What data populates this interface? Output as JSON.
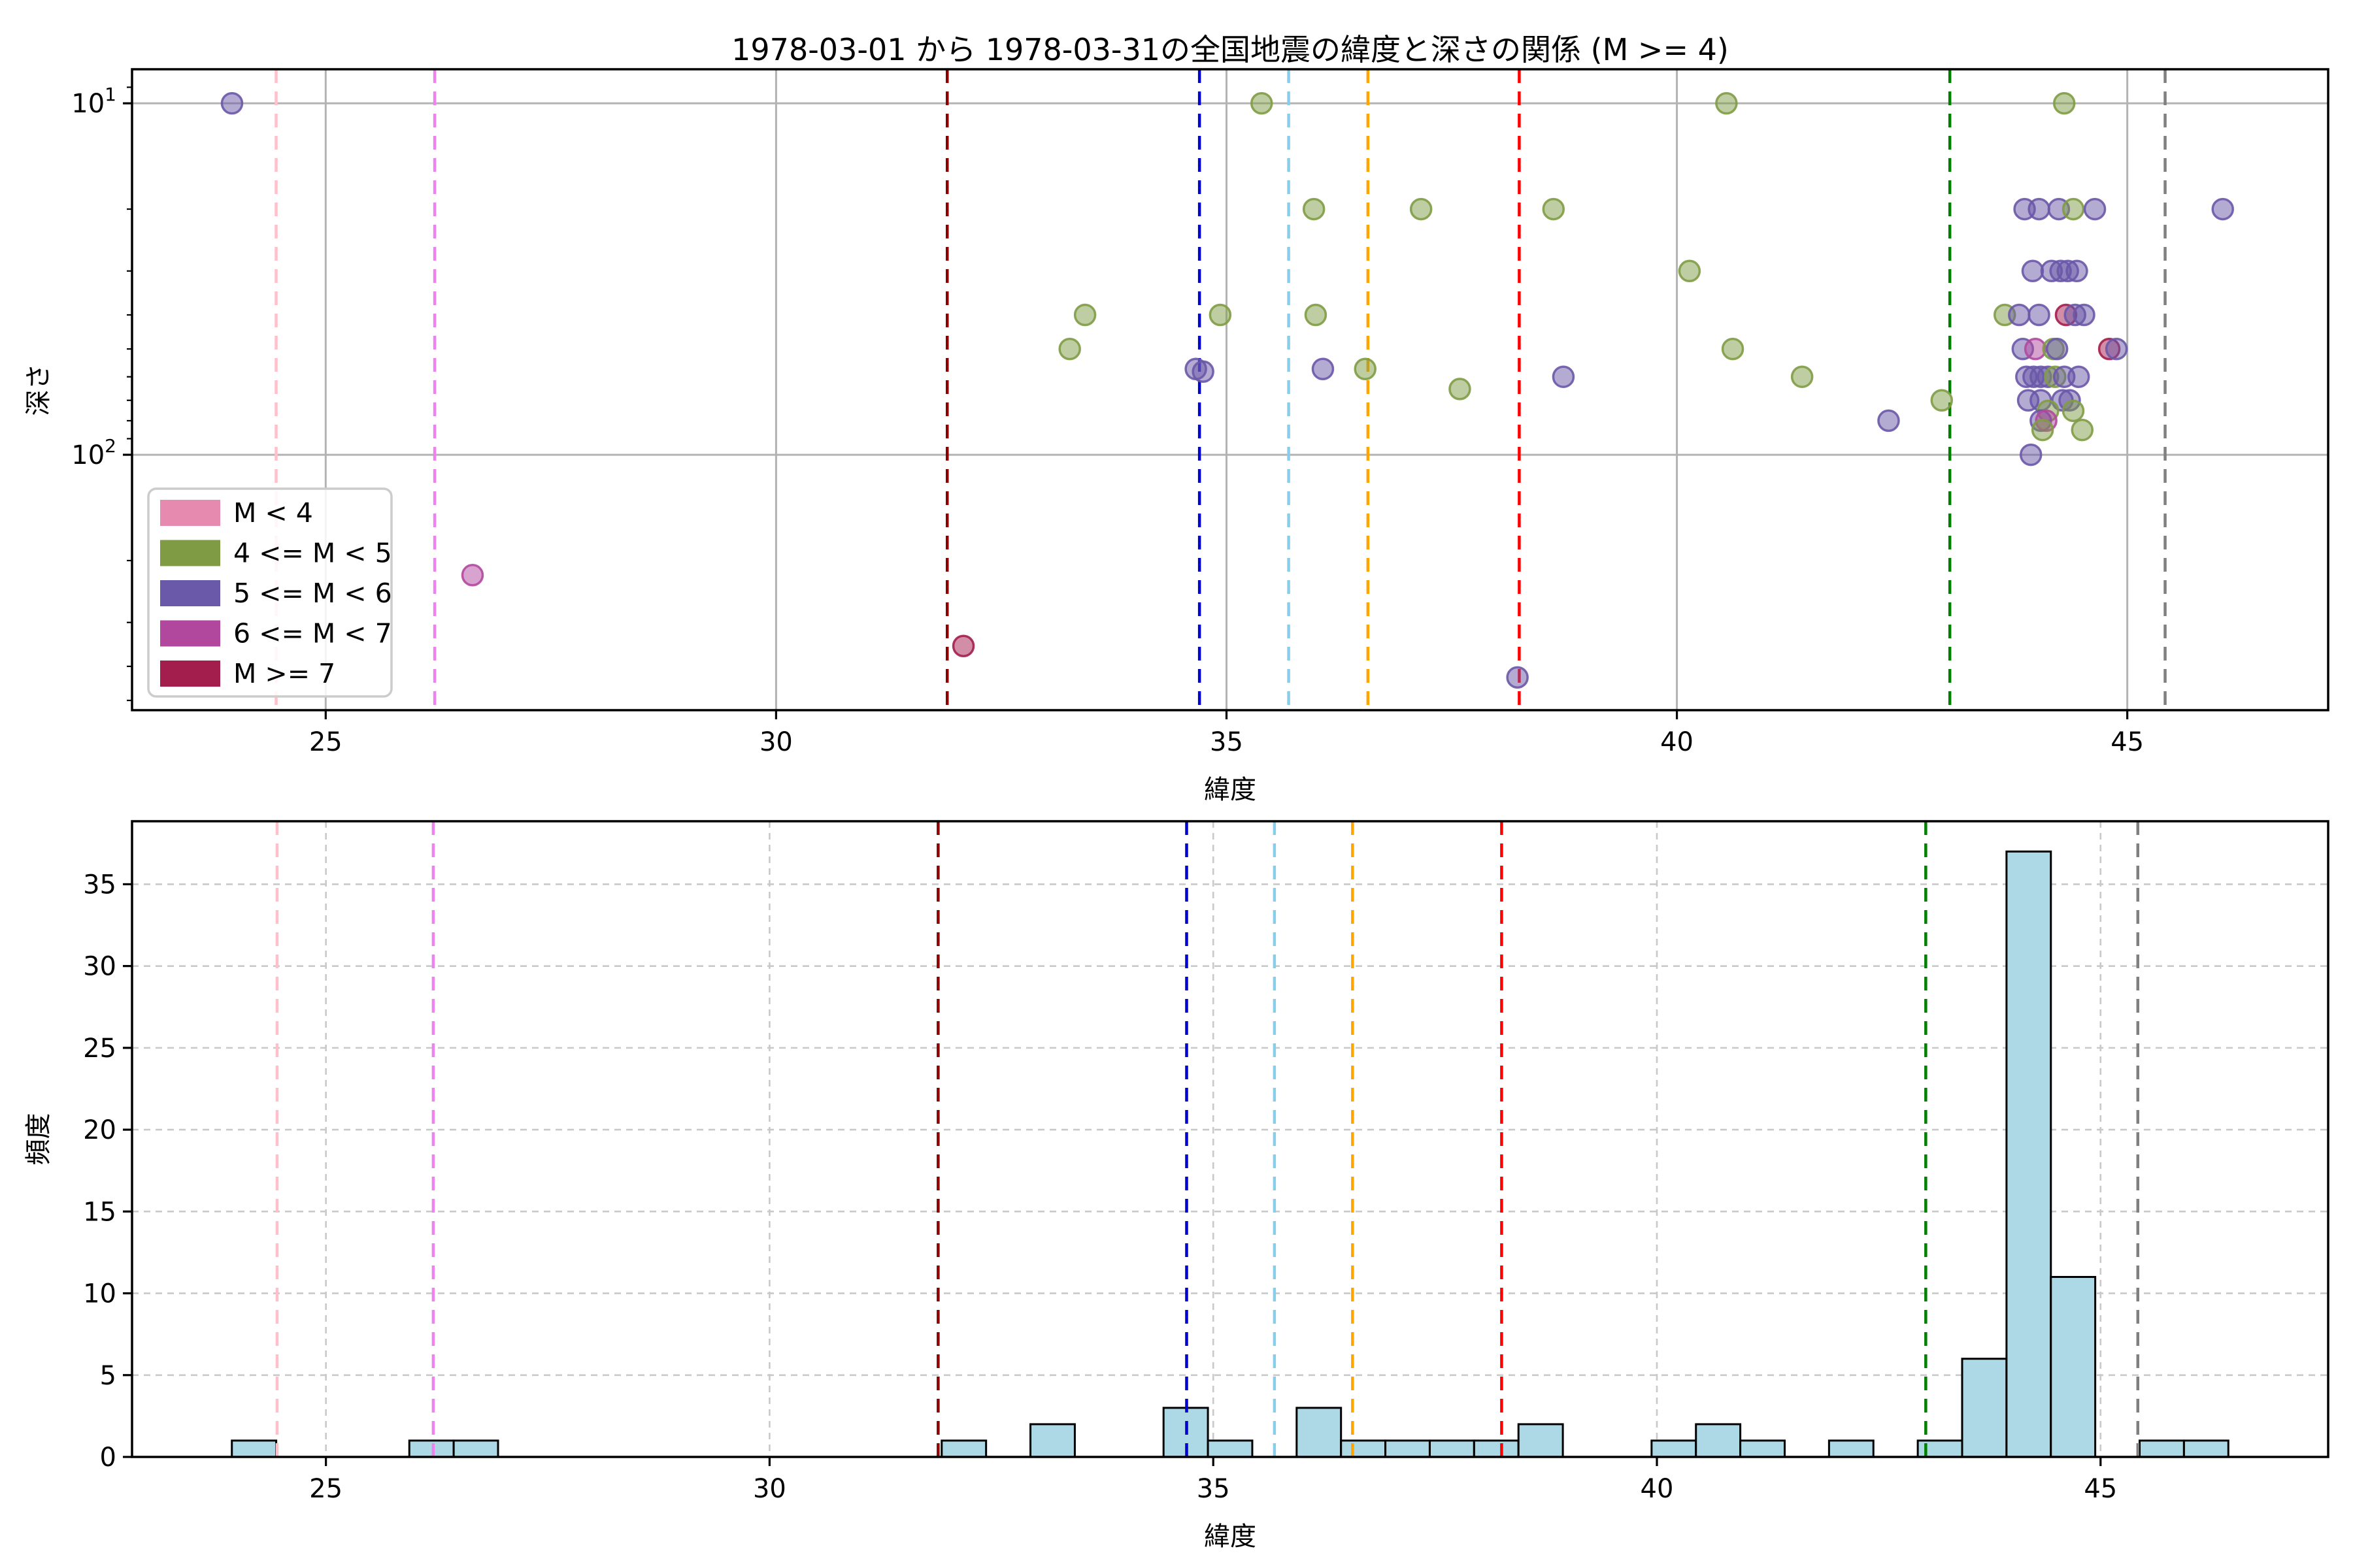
{
  "title": "1978-03-01 から 1978-03-31の全国地震の緯度と深さの関係 (M >= 4)",
  "legend": {
    "items": [
      {
        "label": "M < 4",
        "color": "#e78ab0"
      },
      {
        "label": "4 <= M < 5",
        "color": "#7f9c45"
      },
      {
        "label": "5 <= M < 6",
        "color": "#6a58a8"
      },
      {
        "label": "6 <= M < 7",
        "color": "#b2489e"
      },
      {
        "label": "M >= 7",
        "color": "#a31e4d"
      }
    ]
  },
  "chart_data": [
    {
      "type": "scatter",
      "title": "1978-03-01 から 1978-03-31の全国地震の緯度と深さの関係 (M >= 4)",
      "xlabel": "緯度",
      "ylabel": "深さ",
      "xlim": [
        22.85,
        47.23
      ],
      "ylim_depth_log_inverted": [
        8.0,
        533
      ],
      "xticks": [
        25,
        30,
        35,
        40,
        45
      ],
      "ytick_labels": [
        "10¹",
        "10²"
      ],
      "ytick_values": [
        10,
        100
      ],
      "yminor_ticks": [
        9,
        20,
        30,
        40,
        50,
        60,
        70,
        80,
        90,
        200,
        300,
        400,
        500
      ],
      "grid": "solid gray at major ticks",
      "legend_position": "lower left",
      "category_colors": [
        "#e78ab0",
        "#7f9c45",
        "#6a58a8",
        "#b2489e",
        "#a31e4d"
      ],
      "points_lat_depth_cat": [
        [
          23.96,
          10,
          2
        ],
        [
          26.63,
          220,
          3
        ],
        [
          32.08,
          350,
          4
        ],
        [
          33.26,
          50,
          1
        ],
        [
          33.43,
          40,
          1
        ],
        [
          34.66,
          57,
          2
        ],
        [
          34.74,
          58,
          2
        ],
        [
          34.93,
          40,
          1
        ],
        [
          35.39,
          10,
          1
        ],
        [
          35.97,
          20,
          1
        ],
        [
          35.99,
          40,
          1
        ],
        [
          36.07,
          57,
          2
        ],
        [
          36.54,
          57,
          1
        ],
        [
          37.16,
          20,
          1
        ],
        [
          37.59,
          65,
          1
        ],
        [
          38.23,
          430,
          2
        ],
        [
          38.63,
          20,
          1
        ],
        [
          38.74,
          60,
          2
        ],
        [
          40.14,
          30,
          1
        ],
        [
          40.55,
          10,
          1
        ],
        [
          40.62,
          50,
          1
        ],
        [
          41.39,
          60,
          1
        ],
        [
          42.35,
          80,
          2
        ],
        [
          42.94,
          70,
          1
        ],
        [
          46.06,
          20,
          2
        ],
        [
          44.3,
          10,
          1
        ],
        [
          43.86,
          20,
          2
        ],
        [
          44.02,
          20,
          2
        ],
        [
          44.24,
          20,
          2
        ],
        [
          44.4,
          20,
          1
        ],
        [
          44.64,
          20,
          2
        ],
        [
          43.95,
          30,
          2
        ],
        [
          44.16,
          30,
          2
        ],
        [
          44.26,
          30,
          2
        ],
        [
          44.34,
          30,
          2
        ],
        [
          44.44,
          30,
          2
        ],
        [
          43.64,
          40,
          1
        ],
        [
          43.8,
          40,
          2
        ],
        [
          44.02,
          40,
          2
        ],
        [
          44.32,
          40,
          4
        ],
        [
          44.42,
          40,
          2
        ],
        [
          44.52,
          40,
          2
        ],
        [
          43.84,
          50,
          2
        ],
        [
          43.98,
          50,
          3
        ],
        [
          44.18,
          50,
          1
        ],
        [
          44.22,
          50,
          2
        ],
        [
          44.8,
          50,
          4
        ],
        [
          44.88,
          50,
          2
        ],
        [
          43.88,
          60,
          2
        ],
        [
          43.96,
          60,
          2
        ],
        [
          44.04,
          60,
          2
        ],
        [
          44.12,
          60,
          2
        ],
        [
          44.2,
          60,
          1
        ],
        [
          44.3,
          60,
          2
        ],
        [
          44.46,
          60,
          2
        ],
        [
          43.9,
          70,
          2
        ],
        [
          44.04,
          70,
          2
        ],
        [
          44.28,
          70,
          2
        ],
        [
          44.36,
          70,
          2
        ],
        [
          44.12,
          75,
          1
        ],
        [
          44.4,
          75,
          1
        ],
        [
          44.04,
          80,
          2
        ],
        [
          44.1,
          80,
          3
        ],
        [
          44.06,
          85,
          1
        ],
        [
          44.5,
          85,
          1
        ],
        [
          43.93,
          100,
          2
        ]
      ],
      "vlines": [
        {
          "lat": 24.45,
          "color": "#FFC0CB"
        },
        {
          "lat": 26.21,
          "color": "#EE82EE"
        },
        {
          "lat": 31.9,
          "color": "#8B0000"
        },
        {
          "lat": 34.7,
          "color": "#0000CD"
        },
        {
          "lat": 35.69,
          "color": "#87CEEB"
        },
        {
          "lat": 36.57,
          "color": "#FFA500"
        },
        {
          "lat": 38.25,
          "color": "#FF0000"
        },
        {
          "lat": 43.03,
          "color": "#008000"
        },
        {
          "lat": 45.42,
          "color": "#808080"
        }
      ]
    },
    {
      "type": "bar",
      "xlabel": "緯度",
      "ylabel": "頻度",
      "xlim": [
        22.815,
        47.565
      ],
      "ylim": [
        0,
        38.85
      ],
      "xticks": [
        25,
        30,
        35,
        40,
        45
      ],
      "yticks": [
        0,
        5,
        10,
        15,
        20,
        25,
        30,
        35
      ],
      "grid": "dashed gray at major ticks",
      "bar_color": "#ADD8E6",
      "bar_edge_color": "#000000",
      "bin_start": 23.94,
      "bin_width": 0.5,
      "counts": [
        1,
        0,
        0,
        0,
        1,
        1,
        0,
        0,
        0,
        0,
        0,
        0,
        0,
        0,
        0,
        0,
        1,
        0,
        2,
        0,
        0,
        3,
        1,
        0,
        3,
        1,
        1,
        1,
        1,
        2,
        0,
        0,
        1,
        2,
        1,
        0,
        1,
        0,
        1,
        6,
        37,
        11,
        0,
        1,
        1
      ],
      "vlines": "same as scatter plot"
    }
  ]
}
